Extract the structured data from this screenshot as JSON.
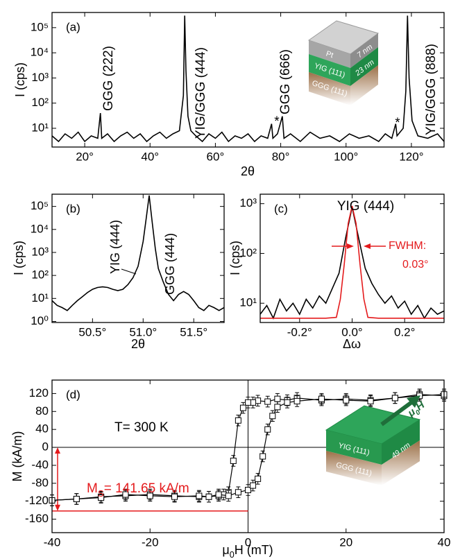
{
  "chart_data": [
    {
      "type": "line",
      "panel_label": "(a)",
      "xlabel": "2θ",
      "ylabel": "I (cps)",
      "ylog": true,
      "xlim": [
        10,
        130
      ],
      "ylim": [
        1.8,
        400000
      ],
      "xticks": [
        {
          "value": 20,
          "label": "20°"
        },
        {
          "value": 40,
          "label": "40°"
        },
        {
          "value": 60,
          "label": "60°"
        },
        {
          "value": 80,
          "label": "80°"
        },
        {
          "value": 100,
          "label": "100°"
        },
        {
          "value": 120,
          "label": "120°"
        }
      ],
      "yticks": [
        {
          "value": 10,
          "label": "10¹"
        },
        {
          "value": 100,
          "label": "10²"
        },
        {
          "value": 1000,
          "label": "10³"
        },
        {
          "value": 10000,
          "label": "10⁴"
        },
        {
          "value": 100000,
          "label": "10⁵"
        }
      ],
      "curves": [
        {
          "color": "#000000",
          "x": [
            10,
            12,
            14,
            16,
            18,
            20,
            22,
            24,
            24.8,
            25.2,
            27,
            29,
            31,
            33,
            35,
            37,
            39,
            41,
            43,
            45,
            47,
            49,
            50.2,
            50.6,
            51.0,
            51.6,
            52.5,
            54,
            56,
            58,
            60,
            62,
            64,
            66,
            68,
            70,
            72,
            74,
            76,
            77.2,
            77.6,
            79,
            80.5,
            81,
            83,
            86,
            89,
            92,
            95,
            98,
            101,
            104,
            107,
            110,
            112,
            114,
            115.2,
            115.6,
            117.5,
            118.3,
            118.8,
            119.3,
            120.2,
            122,
            125,
            128,
            130
          ],
          "values": [
            5,
            3,
            6,
            4,
            7,
            3,
            5,
            4,
            40,
            4,
            6,
            3,
            5,
            7,
            4,
            6,
            3,
            5,
            7,
            4,
            6,
            8,
            200,
            300000,
            2000,
            30,
            8,
            5,
            3,
            6,
            4,
            7,
            3,
            5,
            4,
            6,
            3,
            5,
            4,
            15,
            4,
            6,
            30,
            4,
            6,
            3,
            7,
            4,
            5,
            3,
            6,
            4,
            5,
            3,
            6,
            4,
            15,
            5,
            10,
            300,
            300000,
            1000,
            20,
            5,
            4,
            6,
            3
          ]
        }
      ],
      "annotations": [
        {
          "text": "GGG (222)"
        },
        {
          "text": "YIG/GGG (444)"
        },
        {
          "text": "*"
        },
        {
          "text": "GGG (666)"
        },
        {
          "text": "*"
        },
        {
          "text": "YIG/GGG (888)"
        }
      ],
      "inset": {
        "layers": [
          {
            "name": "Pt",
            "thickness": "7 nm"
          },
          {
            "name": "YIG (111)",
            "thickness": "23 nm"
          },
          {
            "name": "GGG (111)"
          }
        ]
      }
    },
    {
      "type": "line",
      "panel_label": "(b)",
      "xlabel": "2θ",
      "ylabel": "I (cps)",
      "ylog": true,
      "xlim": [
        50.1,
        51.8
      ],
      "ylim": [
        0.9,
        340000
      ],
      "xticks": [
        {
          "value": 50.5,
          "label": "50.5°"
        },
        {
          "value": 51.0,
          "label": "51.0°"
        },
        {
          "value": 51.5,
          "label": "51.5°"
        }
      ],
      "yticks": [
        {
          "value": 1,
          "label": "10⁰"
        },
        {
          "value": 10,
          "label": "10¹"
        },
        {
          "value": 100,
          "label": "10²"
        },
        {
          "value": 1000,
          "label": "10³"
        },
        {
          "value": 10000,
          "label": "10⁴"
        },
        {
          "value": 100000,
          "label": "10⁵"
        }
      ],
      "curves": [
        {
          "color": "#000000",
          "x": [
            50.1,
            50.15,
            50.2,
            50.25,
            50.3,
            50.35,
            50.4,
            50.45,
            50.5,
            50.55,
            50.6,
            50.65,
            50.7,
            50.75,
            50.8,
            50.85,
            50.9,
            50.95,
            51.0,
            51.03,
            51.06,
            51.09,
            51.12,
            51.15,
            51.2,
            51.25,
            51.3,
            51.35,
            51.4,
            51.45,
            51.5,
            51.55,
            51.6,
            51.65,
            51.7,
            51.75,
            51.8
          ],
          "values": [
            8,
            5,
            4,
            3,
            5,
            8,
            12,
            18,
            25,
            30,
            32,
            30,
            25,
            22,
            25,
            40,
            80,
            250,
            3000,
            30000,
            300000,
            20000,
            1500,
            200,
            50,
            15,
            8,
            15,
            20,
            15,
            8,
            4,
            3,
            5,
            4,
            3,
            4
          ]
        }
      ],
      "annotations": [
        {
          "text": "YIG (444)"
        },
        {
          "text": "GGG (444)"
        }
      ]
    },
    {
      "type": "line",
      "panel_label": "(c)",
      "xlabel": "Δω",
      "ylabel": "I (cps)",
      "ylog": true,
      "xlim": [
        -0.35,
        0.35
      ],
      "ylim": [
        4.1,
        1550
      ],
      "xticks": [
        {
          "value": -0.2,
          "label": "-0.2°"
        },
        {
          "value": 0.0,
          "label": "0.0°"
        },
        {
          "value": 0.2,
          "label": "0.2°"
        }
      ],
      "yticks": [
        {
          "value": 10,
          "label": "10¹"
        },
        {
          "value": 100,
          "label": "10²"
        },
        {
          "value": 1000,
          "label": "10³"
        }
      ],
      "curves": [
        {
          "color": "#000000",
          "x": [
            -0.35,
            -0.325,
            -0.3,
            -0.275,
            -0.25,
            -0.225,
            -0.2,
            -0.175,
            -0.15,
            -0.125,
            -0.1,
            -0.075,
            -0.05,
            -0.025,
            0,
            0.025,
            0.05,
            0.075,
            0.1,
            0.125,
            0.15,
            0.175,
            0.2,
            0.225,
            0.25,
            0.275,
            0.3,
            0.325,
            0.35
          ],
          "values": [
            6,
            9,
            5,
            12,
            7,
            10,
            6,
            12,
            8,
            14,
            10,
            20,
            40,
            200,
            850,
            200,
            50,
            25,
            15,
            10,
            14,
            8,
            11,
            6,
            9,
            5,
            8,
            6,
            7
          ]
        },
        {
          "color": "#e41a1c",
          "x": [
            -0.35,
            -0.1,
            -0.06,
            -0.045,
            -0.03,
            -0.015,
            0,
            0.015,
            0.03,
            0.045,
            0.06,
            0.1,
            0.35
          ],
          "values": [
            5,
            5,
            5.2,
            12,
            60,
            400,
            900,
            400,
            60,
            12,
            5.2,
            5,
            5
          ]
        }
      ],
      "annotations": [
        {
          "text": "YIG (444)"
        },
        {
          "text": "FWHM:",
          "color": "#e41a1c"
        },
        {
          "text": "0.03°",
          "color": "#e41a1c"
        }
      ]
    },
    {
      "type": "line",
      "panel_label": "(d)",
      "ylabel": "M (kA/m)",
      "ylog": false,
      "marker": "square",
      "zero_lines": true,
      "xlabel": {
        "text": "μ",
        "sub": "0",
        "rest": "H (mT)"
      },
      "xlim": [
        -40,
        40
      ],
      "ylim": [
        -190,
        150
      ],
      "xticks": [
        -40,
        -20,
        0,
        20,
        40
      ],
      "yticks": [
        -160,
        -120,
        -80,
        -40,
        0,
        40,
        80,
        120
      ],
      "curves": [
        {
          "color": "#000000",
          "x": [
            40,
            35,
            30,
            25,
            20,
            15,
            10,
            8,
            6,
            4,
            2,
            1,
            0,
            -1,
            -2,
            -3,
            -4,
            -5,
            -6,
            -8,
            -10,
            -15,
            -20,
            -25,
            -30,
            -35,
            -40
          ],
          "values": [
            115,
            118,
            110,
            105,
            108,
            105,
            110,
            105,
            108,
            102,
            104,
            100,
            100,
            88,
            60,
            -30,
            -100,
            -105,
            -108,
            -110,
            -110,
            -108,
            -105,
            -108,
            -110,
            -115,
            -118
          ],
          "errors": [
            12,
            12,
            12,
            12,
            12,
            12,
            12,
            12,
            12,
            12,
            12,
            12,
            12,
            12,
            12,
            12,
            12,
            12,
            12,
            12,
            12,
            12,
            12,
            12,
            12,
            12,
            12
          ]
        },
        {
          "color": "#000000",
          "x": [
            -40,
            -35,
            -30,
            -25,
            -20,
            -15,
            -10,
            -8,
            -6,
            -4,
            -2,
            0,
            1,
            2,
            3,
            4,
            5,
            6,
            8,
            10,
            15,
            20,
            25,
            30,
            35,
            40
          ],
          "values": [
            -118,
            -115,
            -112,
            -105,
            -108,
            -110,
            -108,
            -110,
            -105,
            -108,
            -100,
            -95,
            -85,
            -70,
            -20,
            40,
            70,
            90,
            100,
            103,
            108,
            105,
            103,
            110,
            115,
            118
          ],
          "errors": [
            12,
            12,
            12,
            12,
            12,
            12,
            12,
            12,
            12,
            12,
            12,
            12,
            12,
            12,
            12,
            12,
            12,
            12,
            12,
            12,
            12,
            12,
            12,
            12,
            12,
            12
          ]
        }
      ],
      "ms_line": -141.65,
      "ms_color": "#e41a1c",
      "annotations": [
        {
          "text": "T= 300 K"
        },
        {
          "text": "M",
          "sub": "S",
          "rest": "= 141.65 kA/m",
          "color": "#e41a1c"
        }
      ],
      "inset": {
        "layers": [
          {
            "name": "YIG (111)",
            "thickness": "49 nm"
          },
          {
            "name": "GGG (111)"
          }
        ],
        "field": {
          "text": "μ",
          "sub": "0",
          "rest": "H"
        }
      }
    }
  ]
}
